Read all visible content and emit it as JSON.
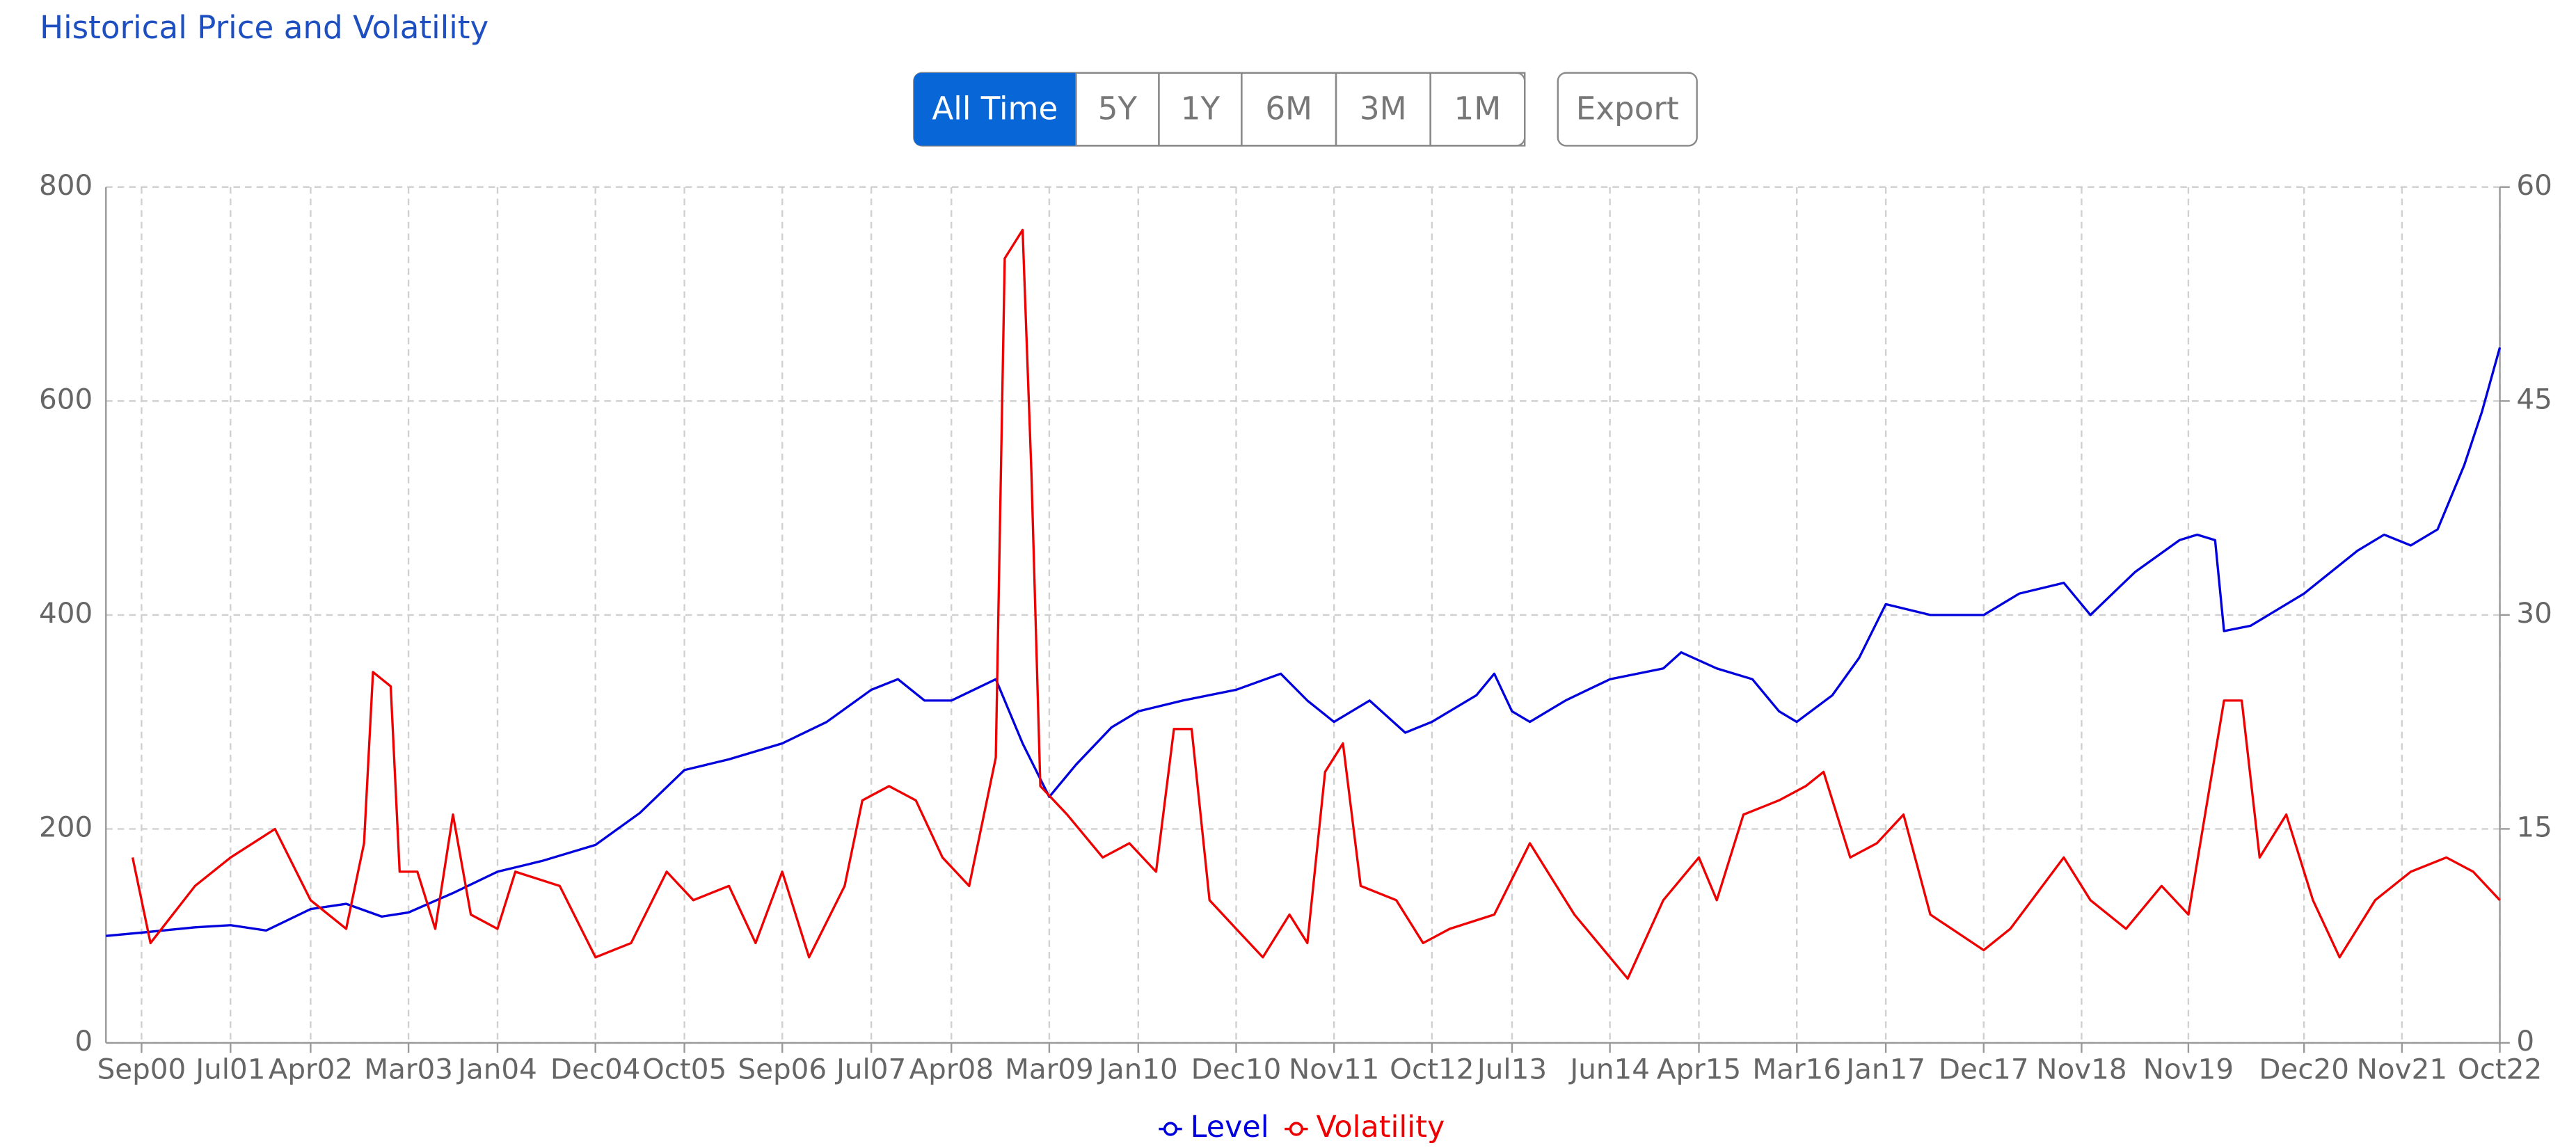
{
  "header": {
    "title": "Historical Price and Volatility"
  },
  "buttons": [
    "All Time",
    "5Y",
    "1Y",
    "6M",
    "3M",
    "1M"
  ],
  "export": "Export",
  "chart_data": {
    "type": "line",
    "xlim": [
      "2000-05",
      "2022-10"
    ],
    "xticks": [
      {
        "value": "2000-09",
        "label": "Sep00"
      },
      {
        "value": "2001-07",
        "label": "Jul01"
      },
      {
        "value": "2002-04",
        "label": "Apr02"
      },
      {
        "value": "2003-03",
        "label": "Mar03"
      },
      {
        "value": "2004-01",
        "label": "Jan04"
      },
      {
        "value": "2004-12",
        "label": "Dec04"
      },
      {
        "value": "2005-10",
        "label": "Oct05"
      },
      {
        "value": "2006-09",
        "label": "Sep06"
      },
      {
        "value": "2007-07",
        "label": "Jul07"
      },
      {
        "value": "2008-04",
        "label": "Apr08"
      },
      {
        "value": "2009-03",
        "label": "Mar09"
      },
      {
        "value": "2010-01",
        "label": "Jan10"
      },
      {
        "value": "2010-12",
        "label": "Dec10"
      },
      {
        "value": "2011-11",
        "label": "Nov11"
      },
      {
        "value": "2012-10",
        "label": "Oct12"
      },
      {
        "value": "2013-07",
        "label": "Jul13"
      },
      {
        "value": "2014-06",
        "label": "Jun14"
      },
      {
        "value": "2015-04",
        "label": "Apr15"
      },
      {
        "value": "2016-03",
        "label": "Mar16"
      },
      {
        "value": "2017-01",
        "label": "Jan17"
      },
      {
        "value": "2017-12",
        "label": "Dec17"
      },
      {
        "value": "2018-11",
        "label": "Nov18"
      },
      {
        "value": "2019-11",
        "label": "Nov19"
      },
      {
        "value": "2020-12",
        "label": "Dec20"
      },
      {
        "value": "2021-11",
        "label": "Nov21"
      },
      {
        "value": "2022-10",
        "label": "Oct22"
      }
    ],
    "ylim": [
      0,
      800
    ],
    "yticks": [
      0,
      200,
      400,
      600,
      800
    ],
    "y2lim": [
      0,
      60
    ],
    "y2ticks": [
      0,
      15,
      30,
      45,
      60
    ],
    "grid": true,
    "series": [
      {
        "name": "Level",
        "color": "#0000dd",
        "x": [
          "2000-05",
          "2000-09",
          "2001-03",
          "2001-07",
          "2001-11",
          "2002-04",
          "2002-08",
          "2002-12",
          "2003-03",
          "2003-08",
          "2004-01",
          "2004-06",
          "2004-12",
          "2005-05",
          "2005-10",
          "2006-03",
          "2006-09",
          "2007-02",
          "2007-07",
          "2007-10",
          "2008-01",
          "2008-04",
          "2008-09",
          "2008-12",
          "2009-03",
          "2009-06",
          "2009-10",
          "2010-01",
          "2010-06",
          "2010-12",
          "2011-05",
          "2011-08",
          "2011-11",
          "2012-03",
          "2012-07",
          "2012-10",
          "2013-03",
          "2013-05",
          "2013-07",
          "2013-09",
          "2014-01",
          "2014-06",
          "2014-12",
          "2015-02",
          "2015-06",
          "2015-10",
          "2016-01",
          "2016-03",
          "2016-07",
          "2016-10",
          "2017-01",
          "2017-06",
          "2017-12",
          "2018-04",
          "2018-09",
          "2018-12",
          "2019-05",
          "2019-10",
          "2019-12",
          "2020-02",
          "2020-03",
          "2020-06",
          "2020-12",
          "2021-06",
          "2021-09",
          "2021-12",
          "2022-03",
          "2022-06",
          "2022-08",
          "2022-10"
        ],
        "values": [
          100,
          103,
          108,
          110,
          105,
          125,
          130,
          118,
          122,
          140,
          160,
          170,
          185,
          215,
          255,
          265,
          280,
          300,
          330,
          340,
          320,
          320,
          340,
          280,
          230,
          260,
          295,
          310,
          320,
          330,
          345,
          320,
          300,
          320,
          290,
          300,
          325,
          345,
          310,
          300,
          320,
          340,
          350,
          365,
          350,
          340,
          310,
          300,
          325,
          360,
          410,
          400,
          400,
          420,
          430,
          400,
          440,
          470,
          475,
          470,
          385,
          390,
          420,
          460,
          475,
          465,
          480,
          540,
          590,
          650
        ]
      },
      {
        "name": "Volatility",
        "color": "#ee0000",
        "axis": "y2",
        "x": [
          "2000-08",
          "2000-10",
          "2001-03",
          "2001-07",
          "2001-12",
          "2002-04",
          "2002-08",
          "2002-10",
          "2002-11",
          "2003-01",
          "2003-02",
          "2003-04",
          "2003-06",
          "2003-08",
          "2003-10",
          "2004-01",
          "2004-03",
          "2004-08",
          "2004-12",
          "2005-04",
          "2005-08",
          "2005-11",
          "2006-03",
          "2006-06",
          "2006-09",
          "2006-12",
          "2007-04",
          "2007-06",
          "2007-09",
          "2007-12",
          "2008-03",
          "2008-06",
          "2008-09",
          "2008-10",
          "2008-12",
          "2009-01",
          "2009-02",
          "2009-05",
          "2009-09",
          "2009-12",
          "2010-03",
          "2010-05",
          "2010-07",
          "2010-09",
          "2010-12",
          "2011-03",
          "2011-06",
          "2011-08",
          "2011-10",
          "2011-12",
          "2012-02",
          "2012-06",
          "2012-09",
          "2012-12",
          "2013-05",
          "2013-09",
          "2013-11",
          "2014-02",
          "2014-06",
          "2014-08",
          "2014-12",
          "2015-04",
          "2015-06",
          "2015-09",
          "2016-01",
          "2016-04",
          "2016-06",
          "2016-09",
          "2016-12",
          "2017-03",
          "2017-06",
          "2017-12",
          "2018-03",
          "2018-09",
          "2018-12",
          "2019-04",
          "2019-08",
          "2019-11",
          "2020-03",
          "2020-05",
          "2020-07",
          "2020-10",
          "2021-01",
          "2021-04",
          "2021-08",
          "2021-12",
          "2022-04",
          "2022-07",
          "2022-10"
        ],
        "values": [
          13,
          7,
          11,
          13,
          15,
          10,
          8,
          14,
          26,
          25,
          12,
          12,
          8,
          16,
          9,
          8,
          12,
          11,
          6,
          7,
          12,
          10,
          11,
          7,
          12,
          6,
          11,
          17,
          18,
          17,
          13,
          11,
          20,
          55,
          57,
          40,
          18,
          16,
          13,
          14,
          12,
          22,
          22,
          10,
          8,
          6,
          9,
          7,
          19,
          21,
          11,
          10,
          7,
          8,
          9,
          14,
          12,
          9,
          6,
          4.5,
          10,
          13,
          10,
          16,
          17,
          18,
          19,
          13,
          14,
          16,
          9,
          6.5,
          8,
          13,
          10,
          8,
          11,
          9,
          24,
          24,
          13,
          16,
          10,
          6,
          10,
          12,
          13,
          12,
          10
        ]
      }
    ]
  }
}
